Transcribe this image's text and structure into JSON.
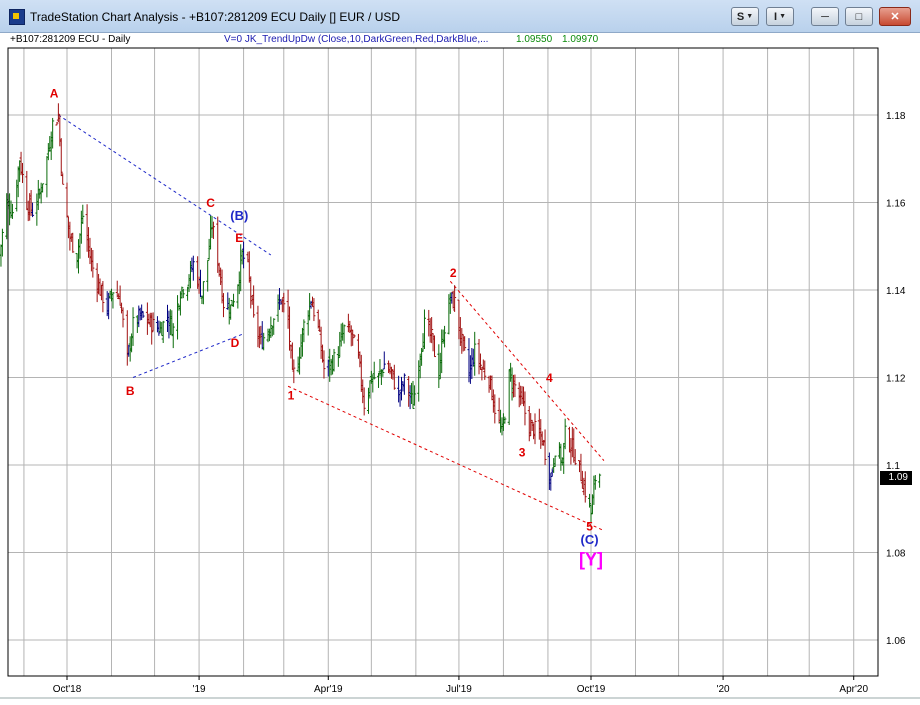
{
  "window": {
    "title": "TradeStation Chart Analysis - +B107:281209 ECU Daily [] EUR / USD",
    "buttons": {
      "s_label": "S",
      "i_label": "I",
      "min_label": "─",
      "max_label": "□",
      "close_label": "✕"
    }
  },
  "status": {
    "symbol": "+B107:281209 ECU - Daily",
    "indicator": "V=0  JK_TrendUpDw  (Close,10,DarkGreen,Red,DarkBlue,...",
    "value1": "1.09550",
    "value2": "1.09970"
  },
  "last_price": "1.09",
  "colors": {
    "up": "#0a6b0a",
    "down": "#a01010",
    "neutral": "#000080",
    "grid": "#b4b4b4",
    "wave_red": "#e00000",
    "wave_blue": "#1e28c8",
    "wave_magenta": "#ff00ff"
  },
  "chart_data": {
    "type": "line",
    "title": "",
    "ylim": [
      1.05,
      1.2
    ],
    "y_ticks": [
      1.06,
      1.08,
      1.1,
      1.12,
      1.14,
      1.16,
      1.18
    ],
    "y_tick_labels": [
      "1.06",
      "1.08",
      "1.1",
      "1.12",
      "1.14",
      "1.16",
      "1.18"
    ],
    "x_ticks": [
      {
        "label": "Oct'18",
        "date": "2018-10-01"
      },
      {
        "label": "'19",
        "date": "2019-01-01"
      },
      {
        "label": "Apr'19",
        "date": "2019-04-01"
      },
      {
        "label": "Jul'19",
        "date": "2019-07-01"
      },
      {
        "label": "Oct'19",
        "date": "2019-10-01"
      },
      {
        "label": "'20",
        "date": "2020-01-01"
      },
      {
        "label": "Apr'20",
        "date": "2020-04-01"
      }
    ],
    "grid": true,
    "series": [
      {
        "points": [
          [
            "2018-08-15",
            1.148
          ],
          [
            "2018-08-20",
            1.16
          ],
          [
            "2018-08-24",
            1.158
          ],
          [
            "2018-08-29",
            1.17
          ],
          [
            "2018-09-03",
            1.16
          ],
          [
            "2018-09-07",
            1.158
          ],
          [
            "2018-09-12",
            1.162
          ],
          [
            "2018-09-17",
            1.17
          ],
          [
            "2018-09-21",
            1.178
          ],
          [
            "2018-09-25",
            1.18
          ],
          [
            "2018-09-28",
            1.163
          ],
          [
            "2018-10-03",
            1.152
          ],
          [
            "2018-10-08",
            1.148
          ],
          [
            "2018-10-12",
            1.157
          ],
          [
            "2018-10-18",
            1.146
          ],
          [
            "2018-10-24",
            1.14
          ],
          [
            "2018-10-29",
            1.136
          ],
          [
            "2018-11-02",
            1.14
          ],
          [
            "2018-11-07",
            1.138
          ],
          [
            "2018-11-12",
            1.124
          ],
          [
            "2018-11-16",
            1.132
          ],
          [
            "2018-11-21",
            1.134
          ],
          [
            "2018-11-26",
            1.133
          ],
          [
            "2018-11-30",
            1.132
          ],
          [
            "2018-12-05",
            1.131
          ],
          [
            "2018-12-10",
            1.134
          ],
          [
            "2018-12-14",
            1.131
          ],
          [
            "2018-12-19",
            1.14
          ],
          [
            "2018-12-24",
            1.142
          ],
          [
            "2018-12-28",
            1.146
          ],
          [
            "2019-01-03",
            1.139
          ],
          [
            "2019-01-07",
            1.147
          ],
          [
            "2019-01-10",
            1.155
          ],
          [
            "2019-01-15",
            1.145
          ],
          [
            "2019-01-18",
            1.137
          ],
          [
            "2019-01-23",
            1.136
          ],
          [
            "2019-01-28",
            1.142
          ],
          [
            "2019-01-31",
            1.148
          ],
          [
            "2019-02-04",
            1.145
          ],
          [
            "2019-02-08",
            1.133
          ],
          [
            "2019-02-13",
            1.128
          ],
          [
            "2019-02-18",
            1.131
          ],
          [
            "2019-02-22",
            1.134
          ],
          [
            "2019-02-27",
            1.138
          ],
          [
            "2019-03-04",
            1.133
          ],
          [
            "2019-03-07",
            1.12
          ],
          [
            "2019-03-11",
            1.124
          ],
          [
            "2019-03-15",
            1.132
          ],
          [
            "2019-03-20",
            1.138
          ],
          [
            "2019-03-25",
            1.131
          ],
          [
            "2019-03-29",
            1.122
          ],
          [
            "2019-04-03",
            1.123
          ],
          [
            "2019-04-08",
            1.126
          ],
          [
            "2019-04-12",
            1.131
          ],
          [
            "2019-04-17",
            1.13
          ],
          [
            "2019-04-22",
            1.124
          ],
          [
            "2019-04-26",
            1.114
          ],
          [
            "2019-05-01",
            1.12
          ],
          [
            "2019-05-06",
            1.12
          ],
          [
            "2019-05-10",
            1.123
          ],
          [
            "2019-05-15",
            1.121
          ],
          [
            "2019-05-20",
            1.116
          ],
          [
            "2019-05-24",
            1.119
          ],
          [
            "2019-05-30",
            1.114
          ],
          [
            "2019-06-04",
            1.126
          ],
          [
            "2019-06-07",
            1.132
          ],
          [
            "2019-06-12",
            1.129
          ],
          [
            "2019-06-17",
            1.121
          ],
          [
            "2019-06-20",
            1.13
          ],
          [
            "2019-06-25",
            1.138
          ],
          [
            "2019-06-28",
            1.137
          ],
          [
            "2019-07-03",
            1.128
          ],
          [
            "2019-07-08",
            1.121
          ],
          [
            "2019-07-12",
            1.126
          ],
          [
            "2019-07-17",
            1.122
          ],
          [
            "2019-07-22",
            1.12
          ],
          [
            "2019-07-26",
            1.113
          ],
          [
            "2019-07-31",
            1.107
          ],
          [
            "2019-08-05",
            1.12
          ],
          [
            "2019-08-09",
            1.118
          ],
          [
            "2019-08-14",
            1.114
          ],
          [
            "2019-08-19",
            1.109
          ],
          [
            "2019-08-23",
            1.108
          ],
          [
            "2019-08-28",
            1.106
          ],
          [
            "2019-09-03",
            1.097
          ],
          [
            "2019-09-06",
            1.104
          ],
          [
            "2019-09-11",
            1.101
          ],
          [
            "2019-09-13",
            1.107
          ],
          [
            "2019-09-18",
            1.104
          ],
          [
            "2019-09-23",
            1.099
          ],
          [
            "2019-09-27",
            1.094
          ],
          [
            "2019-10-01",
            1.089
          ],
          [
            "2019-10-04",
            1.097
          ],
          [
            "2019-10-07",
            1.098
          ]
        ]
      }
    ],
    "trendlines": [
      {
        "style": "blue",
        "from": [
          "2018-09-25",
          1.18
        ],
        "to": [
          "2019-02-20",
          1.148
        ]
      },
      {
        "style": "blue",
        "from": [
          "2018-11-16",
          1.12
        ],
        "to": [
          "2019-02-01",
          1.13
        ]
      },
      {
        "style": "red",
        "from": [
          "2019-03-04",
          1.118
        ],
        "to": [
          "2019-10-10",
          1.085
        ]
      },
      {
        "style": "red",
        "from": [
          "2019-06-25",
          1.142
        ],
        "to": [
          "2019-10-10",
          1.101
        ]
      }
    ],
    "annotations": [
      {
        "text": "A",
        "date": "2018-09-22",
        "price": 1.184,
        "color": "red"
      },
      {
        "text": "B",
        "date": "2018-11-14",
        "price": 1.116,
        "color": "red"
      },
      {
        "text": "C",
        "date": "2019-01-09",
        "price": 1.159,
        "color": "red"
      },
      {
        "text": "(B)",
        "date": "2019-01-29",
        "price": 1.156,
        "color": "blue"
      },
      {
        "text": "E",
        "date": "2019-01-29",
        "price": 1.151,
        "color": "red"
      },
      {
        "text": "D",
        "date": "2019-01-26",
        "price": 1.127,
        "color": "red"
      },
      {
        "text": "1",
        "date": "2019-03-06",
        "price": 1.115,
        "color": "red"
      },
      {
        "text": "2",
        "date": "2019-06-27",
        "price": 1.143,
        "color": "red"
      },
      {
        "text": "3",
        "date": "2019-08-14",
        "price": 1.102,
        "color": "red"
      },
      {
        "text": "4",
        "date": "2019-09-02",
        "price": 1.119,
        "color": "red"
      },
      {
        "text": "5",
        "date": "2019-09-30",
        "price": 1.085,
        "color": "red"
      },
      {
        "text": "(C)",
        "date": "2019-09-30",
        "price": 1.082,
        "color": "blue"
      },
      {
        "text": "[Y]",
        "date": "2019-10-01",
        "price": 1.077,
        "color": "magenta"
      }
    ]
  }
}
